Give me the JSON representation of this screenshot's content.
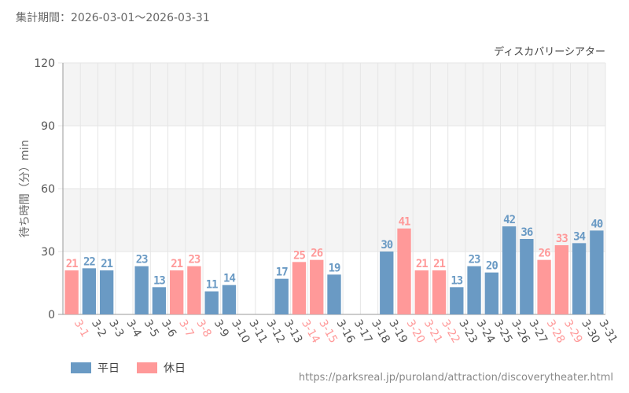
{
  "header": {
    "period_label": "集計期間：2026-03-01～2026-03-31"
  },
  "source_url": "https://parksreal.jp/puroland/attraction/discoverytheater.html",
  "colors": {
    "weekday": "#6a9ac4",
    "holiday": "#ff9999",
    "grid": "#e6e6e6",
    "band": "#f4f4f4"
  },
  "chart_data": {
    "type": "bar",
    "title": "ディスカバリーシアター",
    "ylabel": "待ち時間（分）min",
    "xlabel": "",
    "ylim": [
      0,
      120
    ],
    "yticks": [
      0,
      30,
      60,
      90,
      120
    ],
    "legend": [
      {
        "name": "平日",
        "key": "weekday"
      },
      {
        "name": "休日",
        "key": "holiday"
      }
    ],
    "legend_position": "bottom-left",
    "categories": [
      "3-1",
      "3-2",
      "3-3",
      "3-4",
      "3-5",
      "3-6",
      "3-7",
      "3-8",
      "3-9",
      "3-10",
      "3-11",
      "3-12",
      "3-13",
      "3-14",
      "3-15",
      "3-16",
      "3-17",
      "3-18",
      "3-19",
      "3-20",
      "3-21",
      "3-22",
      "3-23",
      "3-24",
      "3-25",
      "3-26",
      "3-27",
      "3-28",
      "3-29",
      "3-30",
      "3-31"
    ],
    "values": [
      21,
      22,
      21,
      null,
      23,
      13,
      21,
      23,
      11,
      14,
      null,
      null,
      17,
      25,
      26,
      19,
      null,
      null,
      30,
      41,
      21,
      21,
      13,
      23,
      20,
      42,
      36,
      26,
      33,
      34,
      40
    ],
    "day_type": [
      "holiday",
      "weekday",
      "weekday",
      "weekday",
      "weekday",
      "weekday",
      "holiday",
      "holiday",
      "weekday",
      "weekday",
      "weekday",
      "weekday",
      "weekday",
      "holiday",
      "holiday",
      "weekday",
      "weekday",
      "weekday",
      "weekday",
      "holiday",
      "holiday",
      "holiday",
      "weekday",
      "weekday",
      "weekday",
      "weekday",
      "weekday",
      "holiday",
      "holiday",
      "weekday",
      "weekday"
    ]
  }
}
